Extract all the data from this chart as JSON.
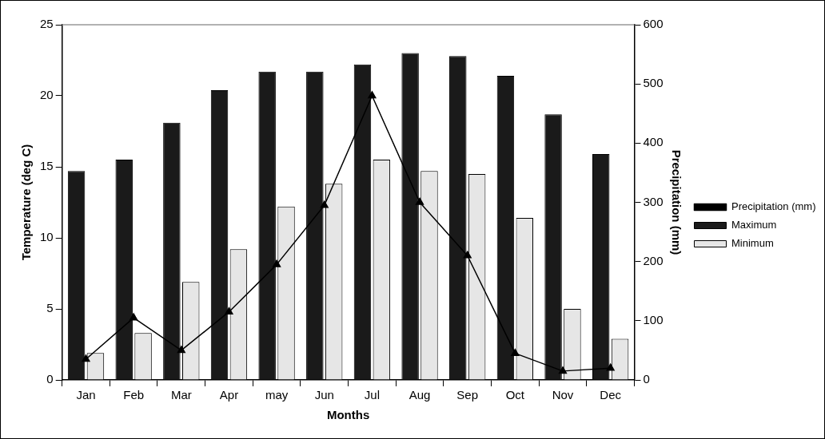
{
  "chart_data": {
    "type": "bar",
    "xlabel": "Months",
    "ylabel": "Temperature (deg C)",
    "y2label": "Precipitation (mm)",
    "categories": [
      "Jan",
      "Feb",
      "Mar",
      "Apr",
      "may",
      "Jun",
      "Jul",
      "Aug",
      "Sep",
      "Oct",
      "Nov",
      "Dec"
    ],
    "series": [
      {
        "name": "Maximum",
        "color": "#1a1a1a",
        "values": [
          14.7,
          15.5,
          18.1,
          20.4,
          21.7,
          21.7,
          22.2,
          23.0,
          22.8,
          21.4,
          18.7,
          15.9
        ]
      },
      {
        "name": "Minimum",
        "color": "#e6e6e6",
        "values": [
          1.9,
          3.3,
          6.9,
          9.2,
          12.2,
          13.8,
          15.5,
          14.7,
          14.5,
          11.4,
          5.0,
          2.9
        ]
      },
      {
        "name": "Precipitation (mm)",
        "type": "line",
        "axis": "y2",
        "color": "#000000",
        "values": [
          35,
          105,
          50,
          115,
          195,
          295,
          480,
          300,
          210,
          45,
          15,
          20
        ]
      }
    ],
    "ylim": [
      0,
      25
    ],
    "yticks": [
      0,
      5,
      10,
      15,
      20,
      25
    ],
    "y2lim": [
      0,
      600
    ],
    "y2ticks": [
      0,
      100,
      200,
      300,
      400,
      500,
      600
    ],
    "grid": false,
    "legend": "right",
    "marker": "triangle",
    "line_style": "solid"
  }
}
